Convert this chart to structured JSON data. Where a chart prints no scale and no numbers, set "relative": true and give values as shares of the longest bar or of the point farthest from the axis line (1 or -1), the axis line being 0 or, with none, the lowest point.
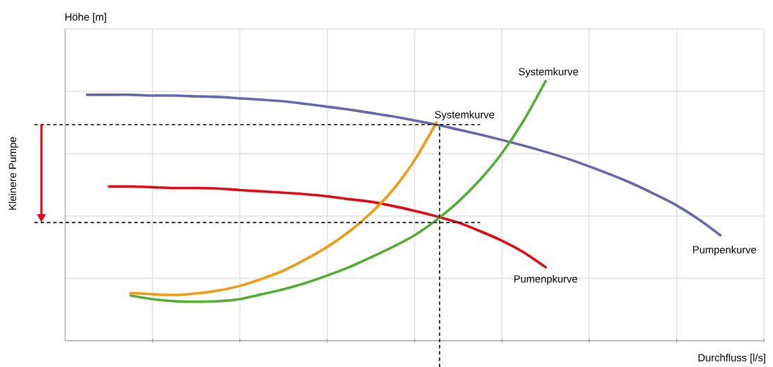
{
  "chart_data": {
    "type": "line",
    "relative": true,
    "xlabel": "Durchfluss [l/s]",
    "grid": true,
    "tick_labels": false,
    "line_style": "solid",
    "marker": "none",
    "categories": [
      null,
      null,
      null,
      null,
      null,
      null,
      null,
      null,
      null,
      null,
      null,
      null,
      null,
      null,
      null,
      null,
      null,
      null,
      null,
      null,
      null,
      null,
      null,
      null,
      null,
      null,
      null,
      null,
      null,
      null,
      null,
      null,
      null
    ],
    "series": [
      {
        "name": "Pumpenkurve",
        "color": "#6467ad",
        "values": [
          null,
          0.947,
          0.947,
          0.947,
          0.944,
          0.944,
          0.941,
          0.939,
          0.933,
          0.928,
          0.922,
          0.912,
          0.901,
          0.89,
          0.877,
          0.864,
          0.848,
          0.832,
          0.813,
          0.794,
          0.773,
          0.751,
          0.727,
          0.701,
          0.671,
          0.639,
          0.604,
          0.564,
          0.521,
          0.468,
          0.406,
          null,
          null
        ]
      },
      {
        "name": "Pumenpkurve",
        "color": "#e30613",
        "values": [
          null,
          null,
          0.594,
          0.594,
          0.591,
          0.588,
          0.588,
          0.586,
          0.58,
          0.575,
          0.57,
          0.564,
          0.556,
          0.545,
          0.535,
          0.519,
          0.5,
          0.479,
          0.455,
          0.422,
          0.385,
          0.34,
          0.283,
          null,
          null,
          null,
          null,
          null,
          null,
          null,
          null,
          null,
          null
        ]
      },
      {
        "name": "Systemkurve",
        "color": "#f39a12",
        "values": [
          null,
          null,
          null,
          0.184,
          0.179,
          0.176,
          0.182,
          0.193,
          0.211,
          0.238,
          0.27,
          0.313,
          0.361,
          0.42,
          0.492,
          0.58,
          0.695,
          0.84,
          null,
          null,
          null,
          null,
          null,
          null,
          null,
          null,
          null,
          null,
          null,
          null,
          null,
          null,
          null
        ]
      },
      {
        "name": "Systemkurve",
        "color": "#52ae32",
        "values": [
          null,
          null,
          null,
          0.174,
          0.16,
          0.152,
          0.15,
          0.152,
          0.16,
          0.179,
          0.198,
          0.222,
          0.251,
          0.283,
          0.321,
          0.361,
          0.406,
          0.465,
          0.535,
          0.62,
          0.722,
          0.848,
          1,
          null,
          null,
          null,
          null,
          null,
          null,
          null,
          null,
          null,
          null
        ]
      }
    ],
    "ref_lines": [
      {
        "axis": "y",
        "value": 0.832,
        "color": "#000000",
        "line_style": "dashed"
      },
      {
        "axis": "y",
        "value": 0.455,
        "color": "#000000",
        "line_style": "dashed"
      }
    ],
    "annotations": [
      "Kleinere Pumpe",
      "Höhe [m]"
    ]
  }
}
